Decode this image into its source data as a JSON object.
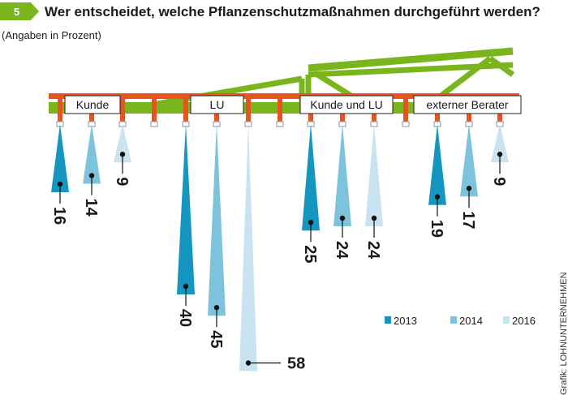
{
  "header": {
    "number": "5",
    "title": "Wer entscheidet, welche Pflanzenschutzmaßnahmen durchgeführt werden?",
    "subtitle": "(Angaben in Prozent)"
  },
  "credit": "Grafik: LOHNUNTERNEHMEN",
  "colors": {
    "badge": "#7ab51d",
    "frame": "#7ab51d",
    "boom": "#e8541e",
    "nozzle": "#9aa7ae",
    "2013": "#1596c0",
    "2014": "#7dc3de",
    "2016": "#c9e4f0"
  },
  "chart_data": {
    "type": "bar",
    "title": "Wer entscheidet, welche Pflanzenschutzmaßnahmen durchgeführt werden?",
    "subtitle": "(Angaben in Prozent)",
    "categories": [
      "Kunde",
      "LU",
      "Kunde und LU",
      "externer Berater"
    ],
    "series": [
      {
        "name": "2013",
        "values": [
          16,
          40,
          25,
          19
        ]
      },
      {
        "name": "2014",
        "values": [
          14,
          45,
          24,
          17
        ]
      },
      {
        "name": "2016",
        "values": [
          9,
          58,
          24,
          9
        ]
      }
    ],
    "legend_position": "bottom-right",
    "grid": false
  }
}
